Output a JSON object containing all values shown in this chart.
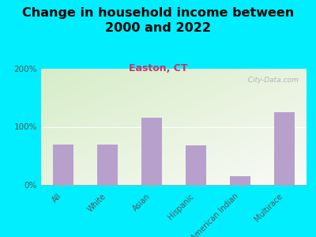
{
  "title": "Change in household income between\n2000 and 2022",
  "subtitle": "Easton, CT",
  "categories": [
    "All",
    "White",
    "Asian",
    "Hispanic",
    "American Indian",
    "Multirace"
  ],
  "values": [
    70,
    70,
    115,
    68,
    15,
    125
  ],
  "bar_color": "#b8a0cc",
  "background_outer": "#00eeff",
  "title_fontsize": 11.5,
  "subtitle_fontsize": 9,
  "subtitle_color": "#cc3366",
  "ylabel_ticks": [
    "0%",
    "100%",
    "200%"
  ],
  "yticks": [
    0,
    100,
    200
  ],
  "ylim": [
    0,
    200
  ],
  "watermark": "  City-Data.com"
}
